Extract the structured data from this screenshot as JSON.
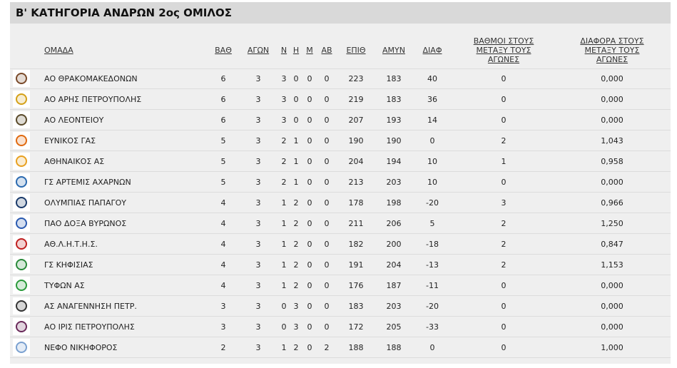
{
  "title": "Β' ΚΑΤΗΓΟΡΙΑ ΑΝΔΡΩΝ 2ος ΟΜΙΛΟΣ",
  "headers": {
    "team": "ΟΜΑΔΑ",
    "pts": "ΒΑΘ",
    "gp": "ΑΓΩΝ",
    "w": "Ν",
    "d": "Η",
    "l": "Μ",
    "ab": "ΑΒ",
    "pf": "ΕΠΙΘ",
    "pa": "ΑΜΥΝ",
    "diff": "ΔΙΑΦ",
    "h2h_pts": "ΒΑΘΜΟΙ ΣΤΟΥΣ ΜΕΤΑΞΥ ΤΟΥΣ ΑΓΩΝΕΣ",
    "h2h_diff": "ΔΙΑΦΟΡΑ ΣΤΟΥΣ ΜΕΤΑΞΥ ΤΟΥΣ ΑΓΩΝΕΣ"
  },
  "rows": [
    {
      "team": "ΑΟ ΘΡΑΚΟΜΑΚΕΔΟΝΩΝ",
      "pts": "6",
      "gp": "3",
      "w": "3",
      "d": "0",
      "l": "0",
      "ab": "0",
      "pf": "223",
      "pa": "183",
      "diff": "40",
      "h2h_pts": "0",
      "h2h_diff": "0,000",
      "logo_color": "#7a4a2a"
    },
    {
      "team": "ΑΟ ΑΡΗΣ ΠΕΤΡΟΥΠΟΛΗΣ",
      "pts": "6",
      "gp": "3",
      "w": "3",
      "d": "0",
      "l": "0",
      "ab": "0",
      "pf": "219",
      "pa": "183",
      "diff": "36",
      "h2h_pts": "0",
      "h2h_diff": "0,000",
      "logo_color": "#d4a017"
    },
    {
      "team": "ΑΟ ΛΕΟΝΤΕΙΟΥ",
      "pts": "6",
      "gp": "3",
      "w": "3",
      "d": "0",
      "l": "0",
      "ab": "0",
      "pf": "207",
      "pa": "193",
      "diff": "14",
      "h2h_pts": "0",
      "h2h_diff": "0,000",
      "logo_color": "#5a4a2a"
    },
    {
      "team": "ΕΥΝΙΚΟΣ ΓΑΣ",
      "pts": "5",
      "gp": "3",
      "w": "2",
      "d": "1",
      "l": "0",
      "ab": "0",
      "pf": "190",
      "pa": "190",
      "diff": "0",
      "h2h_pts": "2",
      "h2h_diff": "1,043",
      "logo_color": "#e06a10"
    },
    {
      "team": "ΑΘΗΝΑΙΚΟΣ ΑΣ",
      "pts": "5",
      "gp": "3",
      "w": "2",
      "d": "1",
      "l": "0",
      "ab": "0",
      "pf": "204",
      "pa": "194",
      "diff": "10",
      "h2h_pts": "1",
      "h2h_diff": "0,958",
      "logo_color": "#e8a020"
    },
    {
      "team": "ΓΣ ΑΡΤΕΜΙΣ ΑΧΑΡΝΩΝ",
      "pts": "5",
      "gp": "3",
      "w": "2",
      "d": "1",
      "l": "0",
      "ab": "0",
      "pf": "213",
      "pa": "203",
      "diff": "10",
      "h2h_pts": "0",
      "h2h_diff": "0,000",
      "logo_color": "#2a6ab0"
    },
    {
      "team": "ΟΛΥΜΠΙΑΣ ΠΑΠΑΓΟΥ",
      "pts": "4",
      "gp": "3",
      "w": "1",
      "d": "2",
      "l": "0",
      "ab": "0",
      "pf": "178",
      "pa": "198",
      "diff": "-20",
      "h2h_pts": "3",
      "h2h_diff": "0,966",
      "logo_color": "#1a3a6a"
    },
    {
      "team": "ΠΑΟ ΔΟΞΑ ΒΥΡΩΝΟΣ",
      "pts": "4",
      "gp": "3",
      "w": "1",
      "d": "2",
      "l": "0",
      "ab": "0",
      "pf": "211",
      "pa": "206",
      "diff": "5",
      "h2h_pts": "2",
      "h2h_diff": "1,250",
      "logo_color": "#2a5ab0"
    },
    {
      "team": "ΑΘ.Λ.Η.Τ.Η.Σ.",
      "pts": "4",
      "gp": "3",
      "w": "1",
      "d": "2",
      "l": "0",
      "ab": "0",
      "pf": "182",
      "pa": "200",
      "diff": "-18",
      "h2h_pts": "2",
      "h2h_diff": "0,847",
      "logo_color": "#c02020"
    },
    {
      "team": "ΓΣ ΚΗΦΙΣΙΑΣ",
      "pts": "4",
      "gp": "3",
      "w": "1",
      "d": "2",
      "l": "0",
      "ab": "0",
      "pf": "191",
      "pa": "204",
      "diff": "-13",
      "h2h_pts": "2",
      "h2h_diff": "1,153",
      "logo_color": "#2a8a3a"
    },
    {
      "team": "ΤΥΦΩΝ ΑΣ",
      "pts": "4",
      "gp": "3",
      "w": "1",
      "d": "2",
      "l": "0",
      "ab": "0",
      "pf": "176",
      "pa": "187",
      "diff": "-11",
      "h2h_pts": "0",
      "h2h_diff": "0,000",
      "logo_color": "#2a9a3a"
    },
    {
      "team": "ΑΣ ΑΝΑΓΕΝΝΗΣΗ ΠΕΤΡ.",
      "pts": "3",
      "gp": "3",
      "w": "0",
      "d": "3",
      "l": "0",
      "ab": "0",
      "pf": "183",
      "pa": "203",
      "diff": "-20",
      "h2h_pts": "0",
      "h2h_diff": "0,000",
      "logo_color": "#333333"
    },
    {
      "team": "ΑΟ ΙΡΙΣ ΠΕΤΡΟΥΠΟΛΗΣ",
      "pts": "3",
      "gp": "3",
      "w": "0",
      "d": "3",
      "l": "0",
      "ab": "0",
      "pf": "172",
      "pa": "205",
      "diff": "-33",
      "h2h_pts": "0",
      "h2h_diff": "0,000",
      "logo_color": "#6a2a5a"
    },
    {
      "team": "ΝΕΦΟ ΝΙΚΗΦΟΡΟΣ",
      "pts": "2",
      "gp": "3",
      "w": "1",
      "d": "2",
      "l": "0",
      "ab": "2",
      "pf": "188",
      "pa": "188",
      "diff": "0",
      "h2h_pts": "0",
      "h2h_diff": "1,000",
      "logo_color": "#7aa0d0"
    }
  ]
}
